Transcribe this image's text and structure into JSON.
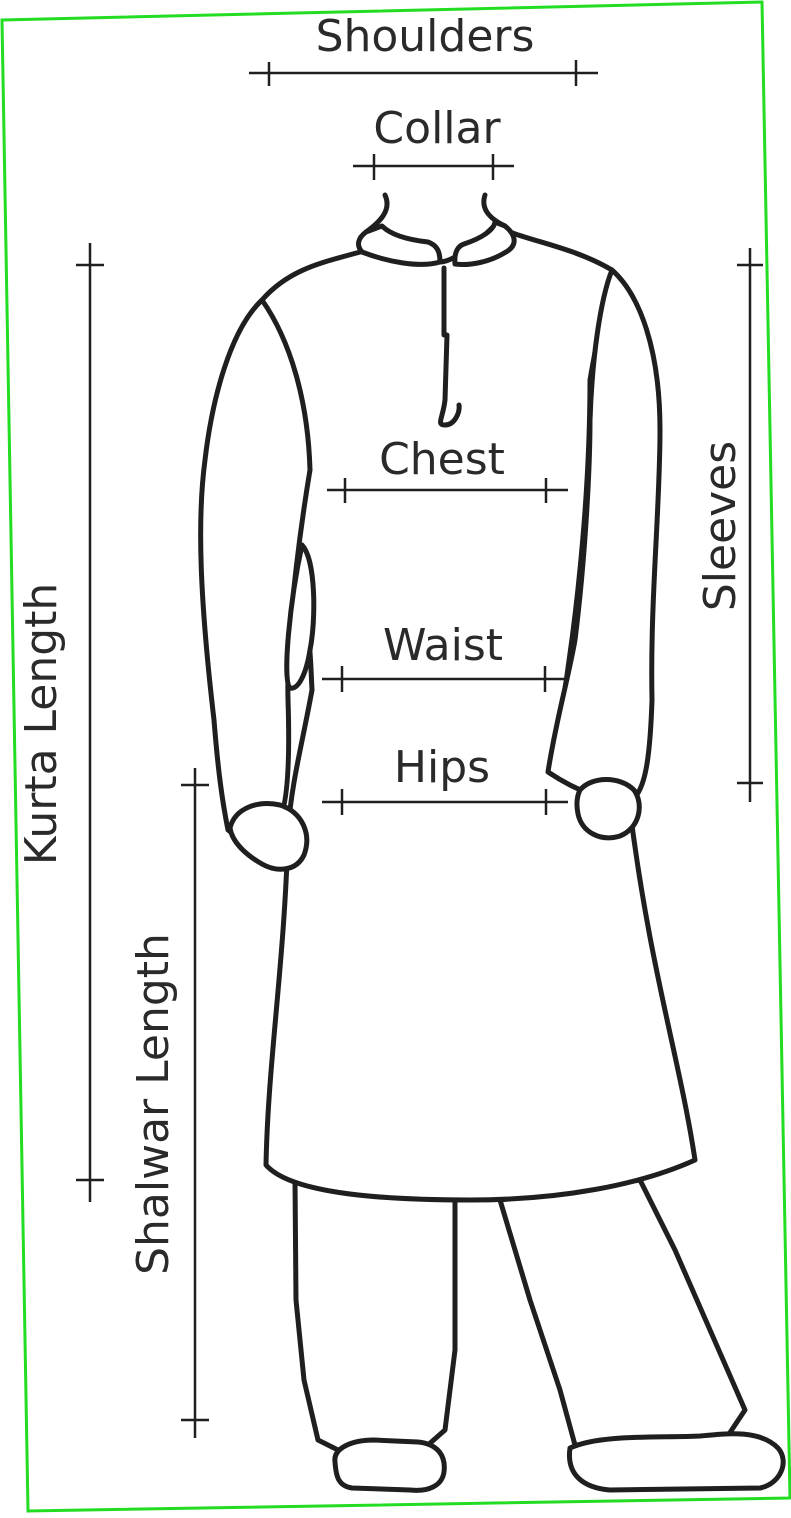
{
  "labels": {
    "shoulders": "Shoulders",
    "collar": "Collar",
    "chest": "Chest",
    "waist": "Waist",
    "hips": "Hips",
    "sleeves": "Sleeves",
    "kurta_length": "Kurta Length",
    "shalwar_length": "Shalwar Length"
  },
  "colors": {
    "frame_border": "#22dd22",
    "line": "#1f1f1f",
    "text": "#2a2a2a"
  }
}
